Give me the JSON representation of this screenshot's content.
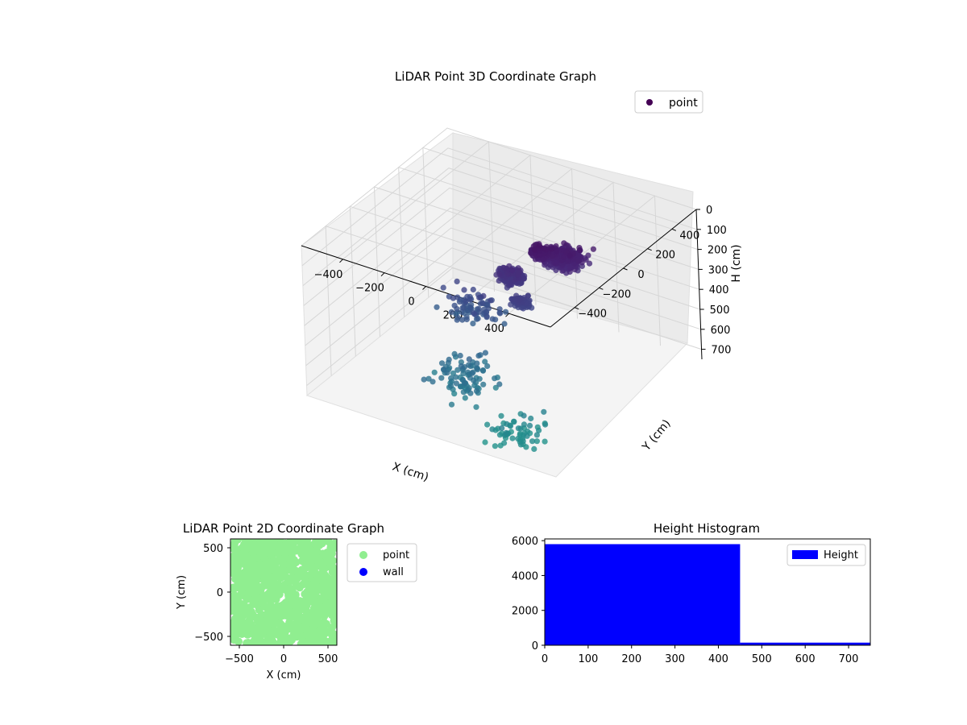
{
  "chart_data": [
    {
      "type": "scatter",
      "projection": "3d",
      "title": "LiDAR Point 3D Coordinate Graph",
      "xlabel": "X (cm)",
      "ylabel": "Y (cm)",
      "zlabel": "H (cm)",
      "xlim": [
        -600,
        600
      ],
      "ylim": [
        -600,
        600
      ],
      "zlim": [
        0,
        750
      ],
      "z_inverted": true,
      "xticks": [
        "−400",
        "−200",
        "0",
        "200",
        "400"
      ],
      "yticks": [
        "−400",
        "−200",
        "0",
        "200",
        "400"
      ],
      "zticks": [
        "0",
        "100",
        "200",
        "300",
        "400",
        "500",
        "600",
        "700"
      ],
      "xtick_values": [
        -400,
        -200,
        0,
        200,
        400
      ],
      "ytick_values": [
        -400,
        -200,
        0,
        200,
        400
      ],
      "ztick_values": [
        0,
        100,
        200,
        300,
        400,
        500,
        600,
        700
      ],
      "grid": true,
      "legend": {
        "placement": "top-right",
        "entries": [
          "point"
        ]
      },
      "colormap": "viridis",
      "marker_color": "#440154",
      "series": [
        {
          "name": "point",
          "clusters": [
            {
              "x": 120,
              "y": 320,
              "h": 270,
              "spread": 110,
              "count": 420
            },
            {
              "x": 40,
              "y": 260,
              "h": 240,
              "spread": 70,
              "count": 140
            },
            {
              "x": -40,
              "y": 150,
              "h": 330,
              "spread": 90,
              "count": 160
            },
            {
              "x": 60,
              "y": 60,
              "h": 380,
              "spread": 60,
              "count": 90
            },
            {
              "x": -150,
              "y": 0,
              "h": 450,
              "spread": 200,
              "count": 80
            },
            {
              "x": 0,
              "y": -300,
              "h": 600,
              "spread": 250,
              "count": 90
            },
            {
              "x": 300,
              "y": -400,
              "h": 720,
              "spread": 200,
              "count": 60
            }
          ]
        }
      ]
    },
    {
      "type": "scatter",
      "title": "LiDAR Point 2D Coordinate Graph",
      "xlabel": "X (cm)",
      "ylabel": "Y (cm)",
      "xlim": [
        -600,
        600
      ],
      "ylim": [
        -600,
        600
      ],
      "xticks": [
        "−500",
        "0",
        "500"
      ],
      "yticks": [
        "−500",
        "0",
        "500"
      ],
      "xtick_values": [
        -500,
        0,
        500
      ],
      "ytick_values": [
        -500,
        0,
        500
      ],
      "legend": {
        "placement": "outside-right",
        "entries": [
          "point",
          "wall"
        ]
      },
      "series": [
        {
          "name": "point",
          "color": "#90ee90",
          "coverage": "dense, nearly full area"
        },
        {
          "name": "wall",
          "color": "#0000ff",
          "values": []
        }
      ]
    },
    {
      "type": "bar",
      "title": "Height Histogram",
      "xlabel": "",
      "ylabel": "",
      "xlim": [
        0,
        750
      ],
      "ylim": [
        0,
        6100
      ],
      "xticks": [
        "0",
        "100",
        "200",
        "300",
        "400",
        "500",
        "600",
        "700"
      ],
      "yticks": [
        "0",
        "2000",
        "4000",
        "6000"
      ],
      "xtick_values": [
        0,
        100,
        200,
        300,
        400,
        500,
        600,
        700
      ],
      "ytick_values": [
        0,
        2000,
        4000,
        6000
      ],
      "legend": {
        "placement": "top-right",
        "entries": [
          "Height"
        ]
      },
      "bins": [
        {
          "start": 0,
          "end": 450,
          "count": 5800
        },
        {
          "start": 450,
          "end": 750,
          "count": 150
        }
      ],
      "series": [
        {
          "name": "Height",
          "color": "#0000ff"
        }
      ]
    }
  ]
}
